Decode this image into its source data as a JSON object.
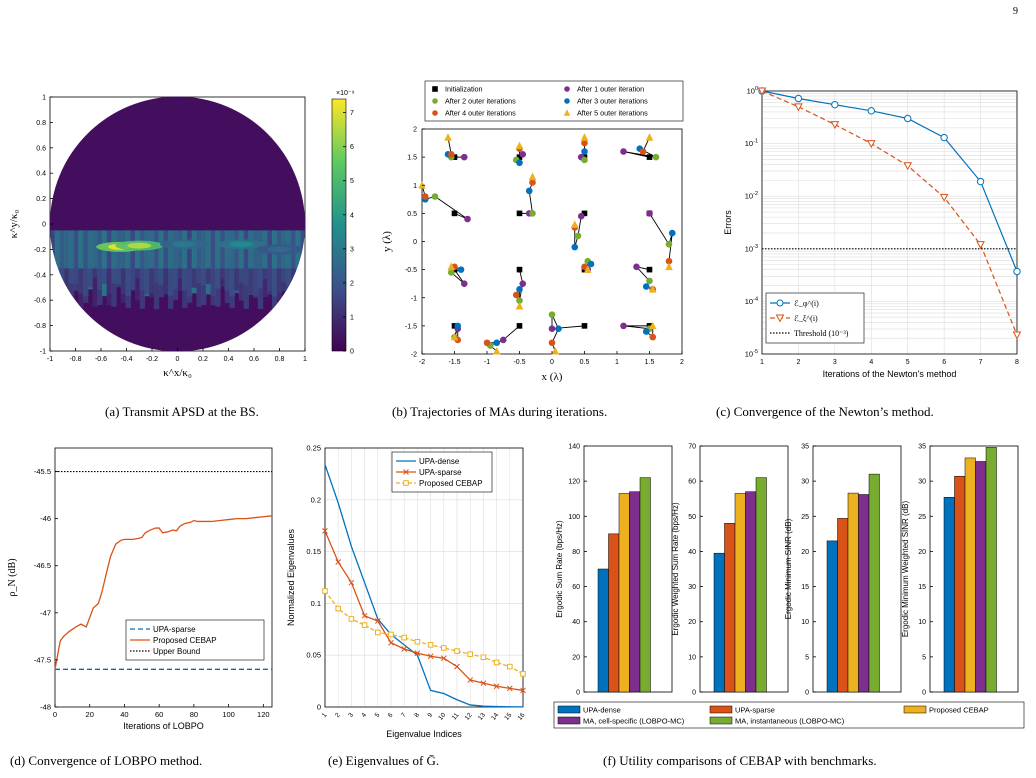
{
  "page_number": "9",
  "captions": {
    "a": "(a) Transmit APSD at the BS.",
    "b": "(b) Trajectories of MAs during iterations.",
    "c": "(c) Convergence of the Newton’s method.",
    "d": "(d) Convergence of LOBPO method.",
    "e": "(e) Eigenvalues of Ḡ.",
    "f": "(f) Utility comparisons of CEBAP with benchmarks."
  },
  "colors": {
    "blue": "#0072BD",
    "orange": "#D95319",
    "yellow": "#EDB120",
    "purple": "#7E2F8E",
    "green": "#77AC30",
    "disk": "#3B2A96"
  },
  "chart_data": [
    {
      "id": "a",
      "type": "heatmap",
      "xlabel": "κ^x/κ₀",
      "ylabel": "κ^y/κ₀",
      "xlim": [
        -1,
        1
      ],
      "ylim": [
        -1,
        1
      ],
      "xticks": [
        "-1",
        "-0.8",
        "-0.6",
        "-0.4",
        "-0.2",
        "0",
        "0.2",
        "0.4",
        "0.6",
        "0.8",
        "1"
      ],
      "yticks": [
        "1",
        "0.8",
        "0.6",
        "0.4",
        "0.2",
        "0",
        "-0.2",
        "-0.4",
        "-0.6",
        "-0.8",
        "-1"
      ],
      "colorbar": {
        "label": "×10⁻⁹",
        "ticks": [
          "7",
          "6",
          "5",
          "4",
          "3",
          "2",
          "1",
          "0"
        ],
        "range": [
          0,
          7.4
        ]
      },
      "hotspots": [
        {
          "x": -0.45,
          "y": -0.18,
          "value": 7.2
        },
        {
          "x": -0.3,
          "y": -0.17,
          "value": 6.5
        },
        {
          "x": 0.05,
          "y": -0.16,
          "value": 3.0
        },
        {
          "x": 0.5,
          "y": -0.16,
          "value": 3.5
        },
        {
          "x": 0.8,
          "y": -0.2,
          "value": 2.5
        }
      ]
    },
    {
      "id": "b",
      "type": "scatter",
      "xlabel": "x (λ)",
      "ylabel": "y (λ)",
      "xlim": [
        -2,
        2
      ],
      "ylim": [
        -2,
        2
      ],
      "xticks": [
        "-2",
        "-1.5",
        "-1",
        "-0.5",
        "0",
        "0.5",
        "1",
        "1.5",
        "2"
      ],
      "yticks": [
        "2",
        "1.5",
        "1",
        "0.5",
        "0",
        "-0.5",
        "-1",
        "-1.5",
        "-2"
      ],
      "legend": [
        "Initialization",
        "After 1 outer iteration",
        "After 2 outer iterations",
        "After 3 outer iterations",
        "After 4 outer iterations",
        "After 5 outer iterations"
      ],
      "trajectories": [
        [
          [
            -1.5,
            1.5
          ],
          [
            -1.35,
            1.5
          ],
          [
            -1.55,
            1.5
          ],
          [
            -1.6,
            1.55
          ],
          [
            -1.55,
            1.55
          ],
          [
            -1.6,
            1.85
          ]
        ],
        [
          [
            -0.5,
            1.5
          ],
          [
            -0.45,
            1.55
          ],
          [
            -0.55,
            1.45
          ],
          [
            -0.5,
            1.4
          ],
          [
            -0.5,
            1.65
          ],
          [
            -0.5,
            1.7
          ]
        ],
        [
          [
            0.5,
            1.5
          ],
          [
            0.45,
            1.5
          ],
          [
            0.5,
            1.45
          ],
          [
            0.5,
            1.6
          ],
          [
            0.5,
            1.75
          ],
          [
            0.5,
            1.85
          ]
        ],
        [
          [
            1.5,
            1.5
          ],
          [
            1.1,
            1.6
          ],
          [
            1.6,
            1.5
          ],
          [
            1.35,
            1.65
          ],
          [
            1.4,
            1.6
          ],
          [
            1.5,
            1.85
          ]
        ],
        [
          [
            -1.5,
            0.5
          ],
          [
            -1.3,
            0.4
          ],
          [
            -1.8,
            0.8
          ],
          [
            -1.95,
            0.75
          ],
          [
            -1.95,
            0.8
          ],
          [
            -2.0,
            1.0
          ]
        ],
        [
          [
            -0.5,
            0.5
          ],
          [
            -0.35,
            0.5
          ],
          [
            -0.3,
            0.5
          ],
          [
            -0.35,
            0.9
          ],
          [
            -0.3,
            1.05
          ],
          [
            -0.3,
            1.15
          ]
        ],
        [
          [
            0.5,
            0.5
          ],
          [
            0.45,
            0.45
          ],
          [
            0.4,
            0.1
          ],
          [
            0.35,
            -0.1
          ],
          [
            0.35,
            0.25
          ],
          [
            0.35,
            0.3
          ]
        ],
        [
          [
            1.5,
            0.5
          ],
          [
            1.5,
            0.5
          ],
          [
            1.8,
            -0.05
          ],
          [
            1.85,
            0.15
          ],
          [
            1.8,
            -0.35
          ],
          [
            1.8,
            -0.45
          ]
        ],
        [
          [
            -1.5,
            -0.5
          ],
          [
            -1.35,
            -0.75
          ],
          [
            -1.55,
            -0.55
          ],
          [
            -1.4,
            -0.5
          ],
          [
            -1.5,
            -0.45
          ],
          [
            -1.55,
            -0.45
          ]
        ],
        [
          [
            -0.5,
            -0.5
          ],
          [
            -0.45,
            -0.75
          ],
          [
            -0.5,
            -1.05
          ],
          [
            -0.5,
            -0.85
          ],
          [
            -0.55,
            -0.95
          ],
          [
            -0.5,
            -1.15
          ]
        ],
        [
          [
            0.5,
            -0.5
          ],
          [
            0.55,
            -0.5
          ],
          [
            0.55,
            -0.35
          ],
          [
            0.6,
            -0.4
          ],
          [
            0.5,
            -0.45
          ],
          [
            0.55,
            -0.5
          ]
        ],
        [
          [
            1.5,
            -0.5
          ],
          [
            1.3,
            -0.45
          ],
          [
            1.5,
            -0.7
          ],
          [
            1.45,
            -0.8
          ],
          [
            1.55,
            -0.85
          ],
          [
            1.55,
            -0.85
          ]
        ],
        [
          [
            -1.5,
            -1.5
          ],
          [
            -1.45,
            -1.55
          ],
          [
            -1.5,
            -1.7
          ],
          [
            -1.45,
            -1.5
          ],
          [
            -1.45,
            -1.75
          ],
          [
            -1.5,
            -1.7
          ]
        ],
        [
          [
            -0.5,
            -1.5
          ],
          [
            -0.75,
            -1.75
          ],
          [
            -0.95,
            -1.85
          ],
          [
            -0.85,
            -1.8
          ],
          [
            -1.0,
            -1.8
          ],
          [
            -0.85,
            -1.95
          ]
        ],
        [
          [
            0.5,
            -1.5
          ],
          [
            0.0,
            -1.55
          ],
          [
            0.0,
            -1.3
          ],
          [
            0.1,
            -1.55
          ],
          [
            0.0,
            -1.8
          ],
          [
            0.05,
            -1.95
          ]
        ],
        [
          [
            1.5,
            -1.5
          ],
          [
            1.1,
            -1.5
          ],
          [
            1.5,
            -1.55
          ],
          [
            1.45,
            -1.6
          ],
          [
            1.55,
            -1.7
          ],
          [
            1.55,
            -1.5
          ]
        ]
      ]
    },
    {
      "id": "c",
      "type": "line",
      "xlabel": "Iterations of the Newton's method",
      "ylabel": "Errors",
      "x": [
        1,
        2,
        3,
        4,
        5,
        6,
        7,
        8
      ],
      "xlim": [
        1,
        8
      ],
      "ylim": [
        1e-05,
        1
      ],
      "yscale": "log",
      "xticks": [
        "1",
        "2",
        "3",
        "4",
        "5",
        "6",
        "7",
        "8"
      ],
      "series": [
        {
          "name": "ℰ_φ^(i)",
          "values": [
            1,
            0.72,
            0.55,
            0.42,
            0.3,
            0.13,
            0.019,
            0.00037
          ]
        },
        {
          "name": "ℰ_ξ^(i)",
          "values": [
            1,
            0.5,
            0.23,
            0.1,
            0.038,
            0.0095,
            0.0012,
            2.3e-05
          ]
        },
        {
          "name": "Threshold (10⁻³)",
          "values": [
            0.001,
            0.001,
            0.001,
            0.001,
            0.001,
            0.001,
            0.001,
            0.001
          ]
        }
      ]
    },
    {
      "id": "d",
      "type": "line",
      "xlabel": "Iterations of LOBPO",
      "ylabel": "ρ_N (dB)",
      "xlim": [
        0,
        125
      ],
      "ylim": [
        -48,
        -45.25
      ],
      "xticks": [
        "0",
        "20",
        "40",
        "60",
        "80",
        "100",
        "120"
      ],
      "yticks": [
        "-45.5",
        "-46",
        "-46.5",
        "-47",
        "-47.5",
        "-48"
      ],
      "series": [
        {
          "name": "UPA-sparse",
          "values": [
            -47.6,
            -47.6
          ]
        },
        {
          "name": "Proposed CEBAP",
          "x": [
            0,
            1,
            2,
            3,
            5,
            8,
            12,
            15,
            18,
            20,
            22,
            25,
            27,
            30,
            32,
            35,
            38,
            40,
            42,
            45,
            48,
            50,
            52,
            55,
            58,
            60,
            62,
            65,
            68,
            70,
            72,
            75,
            78,
            80,
            82,
            85,
            88,
            90,
            95,
            100,
            105,
            110,
            115,
            120,
            125
          ],
          "values": [
            -47.6,
            -47.5,
            -47.4,
            -47.3,
            -47.25,
            -47.2,
            -47.15,
            -47.12,
            -47.15,
            -47.05,
            -46.95,
            -46.9,
            -46.78,
            -46.55,
            -46.4,
            -46.27,
            -46.23,
            -46.22,
            -46.22,
            -46.22,
            -46.21,
            -46.2,
            -46.15,
            -46.12,
            -46.1,
            -46.1,
            -46.15,
            -46.14,
            -46.12,
            -46.13,
            -46.08,
            -46.05,
            -46.04,
            -46.02,
            -46.03,
            -46.03,
            -46.03,
            -46.03,
            -46.02,
            -46.01,
            -46.0,
            -46.0,
            -45.99,
            -45.98,
            -45.97
          ]
        },
        {
          "name": "Upper Bound",
          "values": [
            -45.5,
            -45.5
          ]
        }
      ]
    },
    {
      "id": "e",
      "type": "line",
      "xlabel": "Eigenvalue Indices",
      "ylabel": "Normalized Eigenvalues",
      "x": [
        1,
        2,
        3,
        4,
        5,
        6,
        7,
        8,
        9,
        10,
        11,
        12,
        13,
        14,
        15,
        16
      ],
      "xlim": [
        1,
        16
      ],
      "ylim": [
        0,
        0.25
      ],
      "xticks": [
        "1",
        "2",
        "3",
        "4",
        "5",
        "6",
        "7",
        "8",
        "9",
        "10",
        "11",
        "12",
        "13",
        "14",
        "15",
        "16"
      ],
      "yticks": [
        "0.25",
        "0.2",
        "0.15",
        "0.1",
        "0.05",
        "0"
      ],
      "series": [
        {
          "name": "UPA-dense",
          "values": [
            0.234,
            0.197,
            0.155,
            0.12,
            0.085,
            0.07,
            0.06,
            0.05,
            0.016,
            0.013,
            0.007,
            0.002,
            0.0008,
            0.0004,
            0.0002,
            0.0001
          ]
        },
        {
          "name": "UPA-sparse",
          "values": [
            0.17,
            0.14,
            0.12,
            0.088,
            0.083,
            0.062,
            0.056,
            0.052,
            0.049,
            0.047,
            0.039,
            0.026,
            0.023,
            0.02,
            0.018,
            0.016
          ]
        },
        {
          "name": "Proposed CEBAP",
          "values": [
            0.112,
            0.095,
            0.085,
            0.079,
            0.072,
            0.07,
            0.067,
            0.063,
            0.06,
            0.057,
            0.054,
            0.051,
            0.048,
            0.043,
            0.039,
            0.032
          ]
        }
      ]
    },
    {
      "id": "f",
      "type": "bar",
      "legend": [
        "UPA-dense",
        "UPA-sparse",
        "Proposed CEBAP",
        "MA, cell-specific (LOBPO-MC)",
        "MA, instantaneous (LOBPO-MC)"
      ],
      "subplots": [
        {
          "ylabel": "Ergodic Sum Rate (bps/Hz)",
          "ylim": [
            0,
            140
          ],
          "yticks": [
            "140",
            "120",
            "100",
            "80",
            "60",
            "40",
            "20",
            "0"
          ],
          "values": [
            70,
            90,
            113,
            114,
            122
          ]
        },
        {
          "ylabel": "Ergodic Weighted Sum Rate (bps/Hz)",
          "ylim": [
            0,
            70
          ],
          "yticks": [
            "70",
            "60",
            "50",
            "40",
            "30",
            "20",
            "10",
            "0"
          ],
          "values": [
            39.5,
            48,
            56.5,
            57,
            61
          ]
        },
        {
          "ylabel": "Ergodic Minimum SINR (dB)",
          "ylim": [
            0,
            35
          ],
          "yticks": [
            "35",
            "30",
            "25",
            "20",
            "15",
            "10",
            "5",
            "0"
          ],
          "values": [
            21.5,
            24.7,
            28.3,
            28.1,
            31
          ]
        },
        {
          "ylabel": "Ergodic Minimum Weighted SINR (dB)",
          "ylim": [
            0,
            35
          ],
          "yticks": [
            "35",
            "30",
            "25",
            "20",
            "15",
            "10",
            "5",
            "0"
          ],
          "values": [
            27.7,
            30.7,
            33.3,
            32.8,
            34.8
          ]
        }
      ]
    }
  ]
}
